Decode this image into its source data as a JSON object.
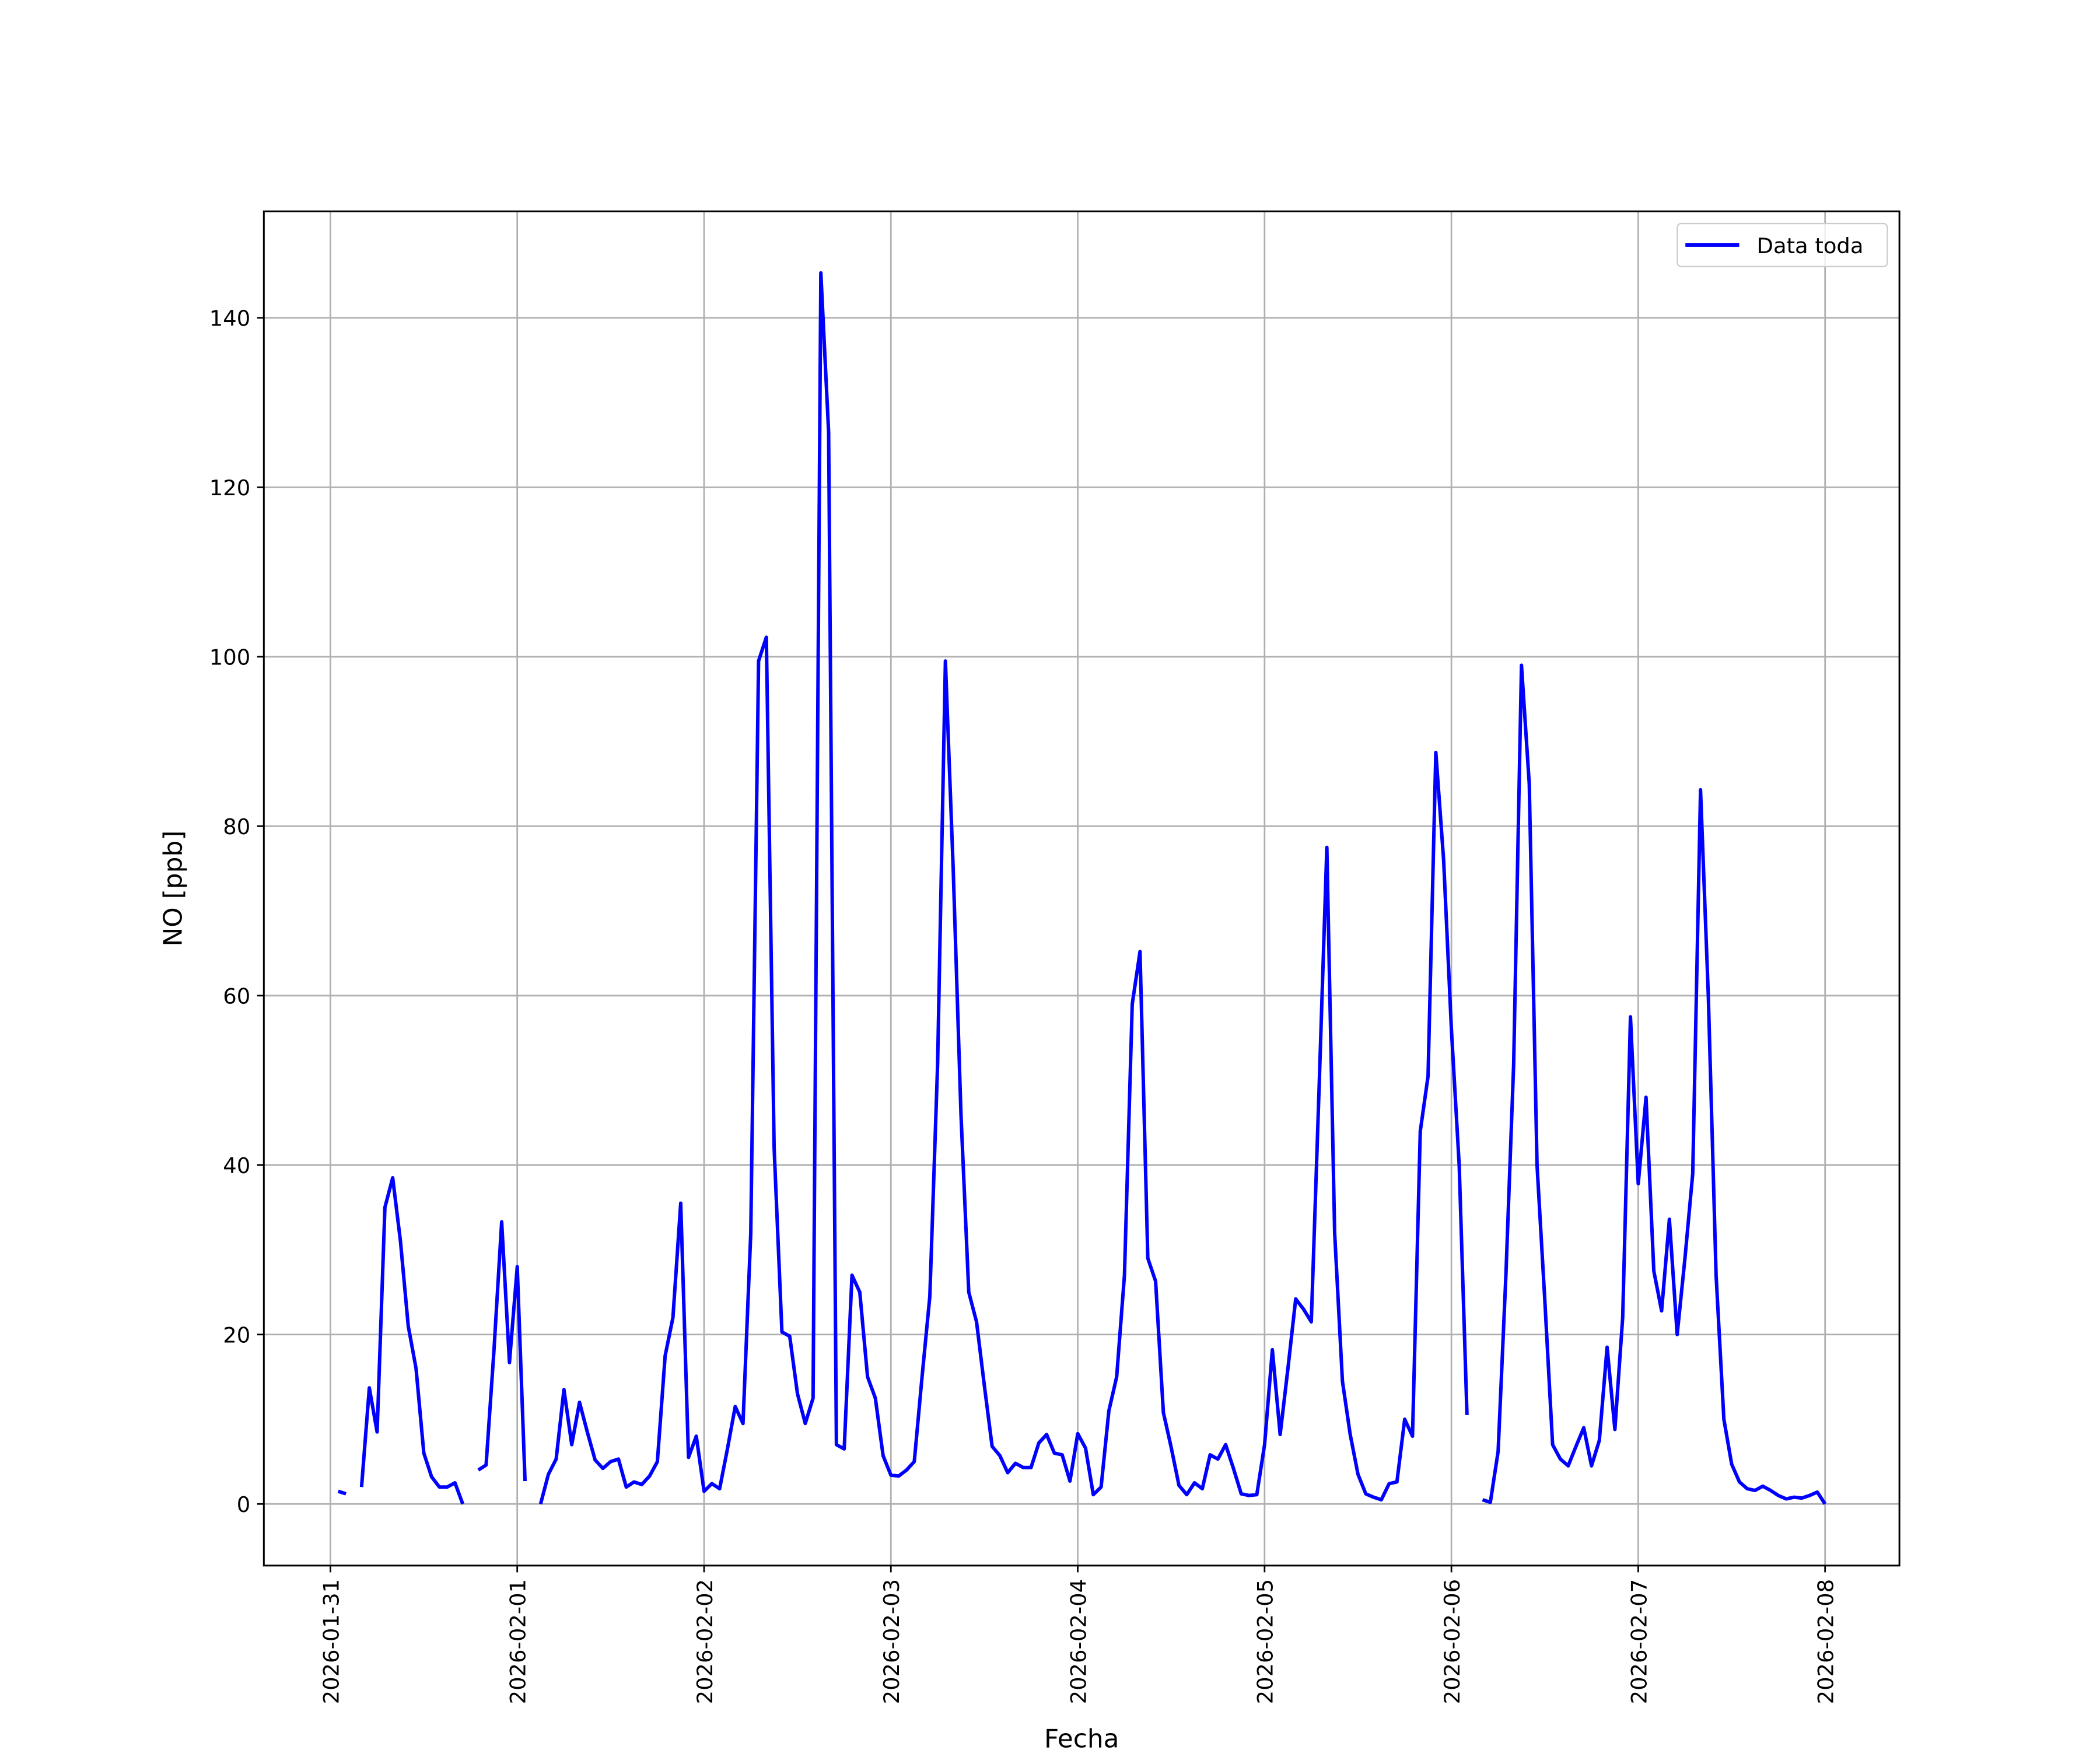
{
  "chart_data": {
    "type": "line",
    "xlabel": "Fecha",
    "ylabel": "NO [ppb]",
    "x": [
      "2026-01-31 01:00",
      "2026-01-31 02:00",
      "2026-01-31 03:00",
      "2026-01-31 04:00",
      "2026-01-31 05:00",
      "2026-01-31 06:00",
      "2026-01-31 07:00",
      "2026-01-31 08:00",
      "2026-01-31 09:00",
      "2026-01-31 10:00",
      "2026-01-31 11:00",
      "2026-01-31 12:00",
      "2026-01-31 13:00",
      "2026-01-31 14:00",
      "2026-01-31 15:00",
      "2026-01-31 16:00",
      "2026-01-31 17:00",
      "2026-01-31 18:00",
      "2026-01-31 19:00",
      "2026-01-31 20:00",
      "2026-01-31 21:00",
      "2026-01-31 22:00",
      "2026-01-31 23:00",
      "2026-02-01 00:00",
      "2026-02-01 01:00",
      "2026-02-01 02:00",
      "2026-02-01 03:00",
      "2026-02-01 04:00",
      "2026-02-01 05:00",
      "2026-02-01 06:00",
      "2026-02-01 07:00",
      "2026-02-01 08:00",
      "2026-02-01 09:00",
      "2026-02-01 10:00",
      "2026-02-01 11:00",
      "2026-02-01 12:00",
      "2026-02-01 13:00",
      "2026-02-01 14:00",
      "2026-02-01 15:00",
      "2026-02-01 16:00",
      "2026-02-01 17:00",
      "2026-02-01 18:00",
      "2026-02-01 19:00",
      "2026-02-01 20:00",
      "2026-02-01 21:00",
      "2026-02-01 22:00",
      "2026-02-01 23:00",
      "2026-02-02 00:00",
      "2026-02-02 01:00",
      "2026-02-02 02:00",
      "2026-02-02 03:00",
      "2026-02-02 04:00",
      "2026-02-02 05:00",
      "2026-02-02 06:00",
      "2026-02-02 07:00",
      "2026-02-02 08:00",
      "2026-02-02 09:00",
      "2026-02-02 10:00",
      "2026-02-02 11:00",
      "2026-02-02 12:00",
      "2026-02-02 13:00",
      "2026-02-02 14:00",
      "2026-02-02 15:00",
      "2026-02-02 16:00",
      "2026-02-02 17:00",
      "2026-02-02 18:00",
      "2026-02-02 19:00",
      "2026-02-02 20:00",
      "2026-02-02 21:00",
      "2026-02-02 22:00",
      "2026-02-02 23:00",
      "2026-02-03 00:00",
      "2026-02-03 01:00",
      "2026-02-03 02:00",
      "2026-02-03 03:00",
      "2026-02-03 04:00",
      "2026-02-03 05:00",
      "2026-02-03 06:00",
      "2026-02-03 07:00",
      "2026-02-03 08:00",
      "2026-02-03 09:00",
      "2026-02-03 10:00",
      "2026-02-03 11:00",
      "2026-02-03 12:00",
      "2026-02-03 13:00",
      "2026-02-03 14:00",
      "2026-02-03 15:00",
      "2026-02-03 16:00",
      "2026-02-03 17:00",
      "2026-02-03 18:00",
      "2026-02-03 19:00",
      "2026-02-03 20:00",
      "2026-02-03 21:00",
      "2026-02-03 22:00",
      "2026-02-03 23:00",
      "2026-02-04 00:00",
      "2026-02-04 01:00",
      "2026-02-04 02:00",
      "2026-02-04 03:00",
      "2026-02-04 04:00",
      "2026-02-04 05:00",
      "2026-02-04 06:00",
      "2026-02-04 07:00",
      "2026-02-04 08:00",
      "2026-02-04 09:00",
      "2026-02-04 10:00",
      "2026-02-04 11:00",
      "2026-02-04 12:00",
      "2026-02-04 13:00",
      "2026-02-04 14:00",
      "2026-02-04 15:00",
      "2026-02-04 16:00",
      "2026-02-04 17:00",
      "2026-02-04 18:00",
      "2026-02-04 19:00",
      "2026-02-04 20:00",
      "2026-02-04 21:00",
      "2026-02-04 22:00",
      "2026-02-04 23:00",
      "2026-02-05 00:00",
      "2026-02-05 01:00",
      "2026-02-05 02:00",
      "2026-02-05 03:00",
      "2026-02-05 04:00",
      "2026-02-05 05:00",
      "2026-02-05 06:00",
      "2026-02-05 07:00",
      "2026-02-05 08:00",
      "2026-02-05 09:00",
      "2026-02-05 10:00",
      "2026-02-05 11:00",
      "2026-02-05 12:00",
      "2026-02-05 13:00",
      "2026-02-05 14:00",
      "2026-02-05 15:00",
      "2026-02-05 16:00",
      "2026-02-05 17:00",
      "2026-02-05 18:00",
      "2026-02-05 19:00",
      "2026-02-05 20:00",
      "2026-02-05 21:00",
      "2026-02-05 22:00",
      "2026-02-05 23:00",
      "2026-02-06 00:00",
      "2026-02-06 01:00",
      "2026-02-06 02:00",
      "2026-02-06 03:00",
      "2026-02-06 04:00",
      "2026-02-06 05:00",
      "2026-02-06 06:00",
      "2026-02-06 07:00",
      "2026-02-06 08:00",
      "2026-02-06 09:00",
      "2026-02-06 10:00",
      "2026-02-06 11:00",
      "2026-02-06 12:00",
      "2026-02-06 13:00",
      "2026-02-06 14:00",
      "2026-02-06 15:00",
      "2026-02-06 16:00",
      "2026-02-06 17:00",
      "2026-02-06 18:00",
      "2026-02-06 19:00",
      "2026-02-06 20:00",
      "2026-02-06 21:00",
      "2026-02-06 22:00",
      "2026-02-06 23:00",
      "2026-02-07 00:00",
      "2026-02-07 01:00",
      "2026-02-07 02:00",
      "2026-02-07 03:00",
      "2026-02-07 04:00",
      "2026-02-07 05:00",
      "2026-02-07 06:00",
      "2026-02-07 07:00",
      "2026-02-07 08:00",
      "2026-02-07 09:00",
      "2026-02-07 10:00",
      "2026-02-07 11:00",
      "2026-02-07 12:00",
      "2026-02-07 13:00",
      "2026-02-07 14:00",
      "2026-02-07 15:00",
      "2026-02-07 16:00",
      "2026-02-07 17:00",
      "2026-02-07 18:00",
      "2026-02-07 19:00",
      "2026-02-07 20:00",
      "2026-02-07 21:00",
      "2026-02-07 22:00",
      "2026-02-07 23:00",
      "2026-02-08 00:00"
    ],
    "series": [
      {
        "name": "Data toda",
        "color": "#0000ff",
        "values": [
          1.5,
          1.2,
          null,
          2,
          13.7,
          8.5,
          35,
          38.5,
          31,
          21,
          16,
          6,
          3.2,
          2,
          2,
          2.5,
          0,
          null,
          4,
          4.6,
          18,
          33.3,
          16.7,
          28,
          2.7,
          null,
          0,
          3.5,
          5.3,
          13.5,
          7,
          12,
          8.5,
          5.2,
          4.2,
          5,
          5.3,
          2,
          2.6,
          2.3,
          3.3,
          5,
          17.5,
          22,
          35.5,
          5.5,
          8,
          1.5,
          2.4,
          1.8,
          6.5,
          11.5,
          9.5,
          32,
          99.5,
          102.3,
          42,
          20.3,
          19.8,
          13,
          9.5,
          12.5,
          145.3,
          126.5,
          7,
          6.5,
          27,
          25,
          15,
          12.5,
          5.7,
          3.4,
          3.3,
          4,
          5,
          15,
          24.5,
          52,
          99.5,
          75,
          46,
          25,
          21.5,
          14,
          6.8,
          5.7,
          3.7,
          4.8,
          4.3,
          4.3,
          7.2,
          8.2,
          6,
          5.8,
          2.7,
          8.3,
          6.6,
          1.1,
          2,
          11,
          15,
          27,
          59,
          65.2,
          29,
          26.3,
          10.8,
          6.7,
          2.2,
          1.1,
          2.5,
          1.8,
          5.8,
          5.3,
          7,
          4.2,
          1.2,
          1,
          1.1,
          7,
          18.2,
          8.2,
          16,
          24.2,
          23,
          21.5,
          49,
          77.5,
          32,
          14.5,
          8.2,
          3.5,
          1.2,
          0.8,
          0.5,
          2.4,
          2.6,
          10,
          8,
          44,
          50.5,
          88.7,
          76,
          56,
          40,
          10.5,
          null,
          0.5,
          0.2,
          6.2,
          27,
          52,
          99,
          85,
          40,
          24,
          7,
          5.3,
          4.5,
          6.8,
          9,
          4.5,
          7.5,
          18.5,
          8.8,
          22,
          57.5,
          37.8,
          48,
          27.5,
          22.8,
          33.6,
          20,
          29,
          39,
          84.3,
          60,
          27,
          10,
          4.7,
          2.6,
          1.8,
          1.6,
          2.1,
          1.6,
          1,
          0.6,
          0.8,
          0.7,
          1,
          1.4,
          0
        ]
      }
    ],
    "xlim": [
      "2026-01-30 15:27",
      "2026-02-08 09:33"
    ],
    "xticks": [
      "2026-01-31",
      "2026-02-01",
      "2026-02-02",
      "2026-02-03",
      "2026-02-04",
      "2026-02-05",
      "2026-02-06",
      "2026-02-07",
      "2026-02-08"
    ],
    "ylim": [
      -7.27,
      152.57
    ],
    "yticks": [
      0,
      20,
      40,
      60,
      80,
      100,
      120,
      140
    ],
    "grid": true,
    "legend": "upper right"
  }
}
